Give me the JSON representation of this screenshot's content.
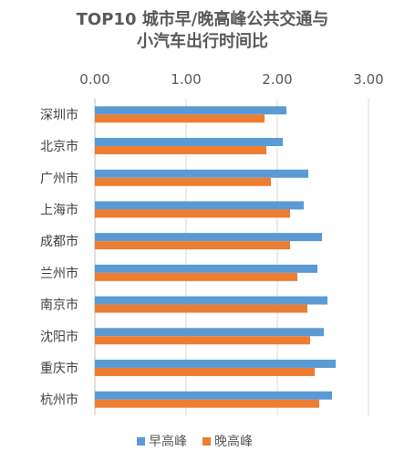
{
  "chart_data": {
    "type": "bar",
    "orientation": "horizontal",
    "title_lines": [
      "TOP10 城市早/晚高峰公共交通与",
      "小汽车出行时间比"
    ],
    "categories": [
      "深圳市",
      "北京市",
      "广州市",
      "上海市",
      "成都市",
      "兰州市",
      "南京市",
      "沈阳市",
      "重庆市",
      "杭州市"
    ],
    "series": [
      {
        "name": "早高峰",
        "color": "#5B9BD5",
        "values": [
          2.1,
          2.06,
          2.34,
          2.29,
          2.49,
          2.44,
          2.55,
          2.51,
          2.64,
          2.6
        ]
      },
      {
        "name": "晚高峰",
        "color": "#ED7D31",
        "values": [
          1.86,
          1.88,
          1.93,
          2.14,
          2.14,
          2.22,
          2.33,
          2.36,
          2.41,
          2.46
        ]
      }
    ],
    "xlim": [
      0,
      3
    ],
    "xticks": [
      "0.00",
      "1.00",
      "2.00",
      "3.00"
    ],
    "xaxis_position": "top",
    "grid": true,
    "legend_position": "bottom"
  }
}
